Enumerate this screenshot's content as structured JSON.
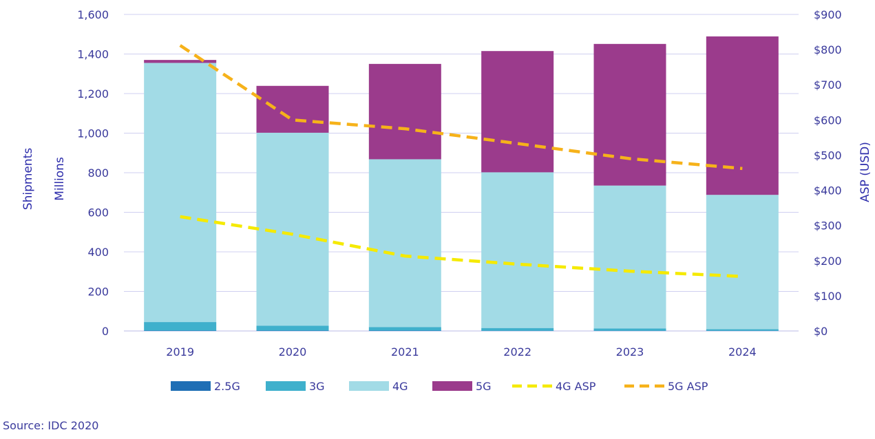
{
  "chart_data": {
    "type": "bar",
    "stacked": true,
    "categories": [
      "2019",
      "2020",
      "2021",
      "2022",
      "2023",
      "2024"
    ],
    "series": [
      {
        "name": "2.5G",
        "values": [
          2,
          2,
          2,
          1,
          1,
          1
        ],
        "color": "#1f6fb5"
      },
      {
        "name": "3G",
        "values": [
          43,
          25,
          18,
          14,
          12,
          8
        ],
        "color": "#3fb0cc"
      },
      {
        "name": "4G",
        "values": [
          1310,
          975,
          848,
          787,
          722,
          679
        ],
        "color": "#a2dbe6"
      },
      {
        "name": "5G",
        "values": [
          15,
          237,
          482,
          613,
          716,
          801
        ],
        "color": "#9b3b8c"
      }
    ],
    "line_series": [
      {
        "name": "4G ASP",
        "values": [
          325,
          275,
          213,
          190,
          170,
          155
        ],
        "color": "#f5ea00",
        "axis": "right"
      },
      {
        "name": "5G ASP",
        "values": [
          812,
          600,
          575,
          533,
          490,
          462
        ],
        "color": "#f6b21a",
        "axis": "right"
      }
    ],
    "ylabel": [
      "Shipments",
      "Millions"
    ],
    "ylim": [
      0,
      1600
    ],
    "yticks": [
      "0",
      "200",
      "400",
      "600",
      "800",
      "1,000",
      "1,200",
      "1,400",
      "1,600"
    ],
    "y2label": "ASP (USD)",
    "y2lim": [
      0,
      900
    ],
    "y2ticks": [
      "$0",
      "$100",
      "$200",
      "$300",
      "$400",
      "$500",
      "$600",
      "$700",
      "$800",
      "$900"
    ],
    "grid": true,
    "legend_position": "bottom",
    "source": "Source: IDC 2020"
  }
}
